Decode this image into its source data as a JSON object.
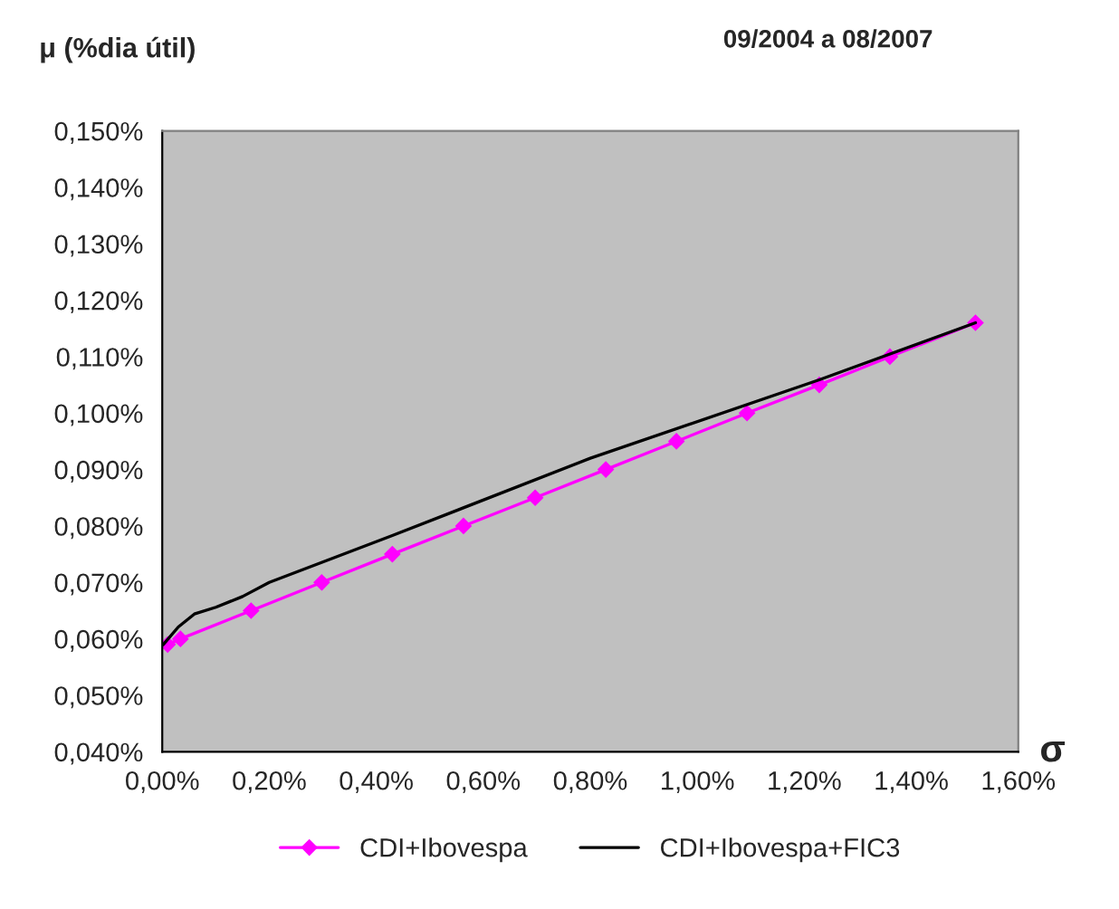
{
  "chart_data": {
    "type": "line",
    "title": "09/2004 a 08/2007",
    "ylabel": "μ (%dia útil)",
    "xlabel": "σ",
    "xlim": [
      0,
      1.6
    ],
    "ylim": [
      0.04,
      0.15
    ],
    "xticks": [
      {
        "value": 0,
        "label": "0,00%"
      },
      {
        "value": 0.2,
        "label": "0,20%"
      },
      {
        "value": 0.4,
        "label": "0,40%"
      },
      {
        "value": 0.6,
        "label": "0,60%"
      },
      {
        "value": 0.8,
        "label": "0,80%"
      },
      {
        "value": 1.0,
        "label": "1,00%"
      },
      {
        "value": 1.2,
        "label": "1,20%"
      },
      {
        "value": 1.4,
        "label": "1,40%"
      },
      {
        "value": 1.6,
        "label": "1,60%"
      }
    ],
    "yticks": [
      {
        "value": 0.04,
        "label": "0,040%"
      },
      {
        "value": 0.05,
        "label": "0,050%"
      },
      {
        "value": 0.06,
        "label": "0,060%"
      },
      {
        "value": 0.07,
        "label": "0,070%"
      },
      {
        "value": 0.08,
        "label": "0,080%"
      },
      {
        "value": 0.09,
        "label": "0,090%"
      },
      {
        "value": 0.1,
        "label": "0,100%"
      },
      {
        "value": 0.11,
        "label": "0,110%"
      },
      {
        "value": 0.12,
        "label": "0,120%"
      },
      {
        "value": 0.13,
        "label": "0,130%"
      },
      {
        "value": 0.14,
        "label": "0,140%"
      },
      {
        "value": 0.15,
        "label": "0,150%"
      }
    ],
    "grid": false,
    "legend": "bottom",
    "series": [
      {
        "name": "CDI+Ibovespa",
        "color": "#ff00ff",
        "marker": "diamond",
        "x": [
          0.01,
          0.034,
          0.166,
          0.298,
          0.43,
          0.563,
          0.697,
          0.829,
          0.961,
          1.093,
          1.228,
          1.36,
          1.52
        ],
        "values": [
          0.059,
          0.06,
          0.065,
          0.07,
          0.075,
          0.08,
          0.085,
          0.09,
          0.095,
          0.1,
          0.105,
          0.11,
          0.116
        ]
      },
      {
        "name": "CDI+Ibovespa+FIC3",
        "color": "#000000",
        "marker": "none",
        "x": [
          0.002,
          0.03,
          0.06,
          0.1,
          0.15,
          0.2,
          0.43,
          0.8,
          1.228,
          1.52
        ],
        "values": [
          0.059,
          0.0621,
          0.0644,
          0.0656,
          0.0675,
          0.07,
          0.0783,
          0.092,
          0.1059,
          0.116
        ]
      }
    ]
  }
}
